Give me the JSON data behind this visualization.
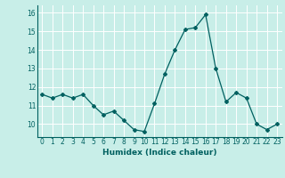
{
  "x": [
    0,
    1,
    2,
    3,
    4,
    5,
    6,
    7,
    8,
    9,
    10,
    11,
    12,
    13,
    14,
    15,
    16,
    17,
    18,
    19,
    20,
    21,
    22,
    23
  ],
  "y": [
    11.6,
    11.4,
    11.6,
    11.4,
    11.6,
    11.0,
    10.5,
    10.7,
    10.2,
    9.7,
    9.6,
    11.1,
    12.7,
    14.0,
    15.1,
    15.2,
    15.9,
    13.0,
    11.2,
    11.7,
    11.4,
    10.0,
    9.7,
    10.0
  ],
  "xlabel": "Humidex (Indice chaleur)",
  "xlim": [
    -0.5,
    23.5
  ],
  "ylim": [
    9.3,
    16.4
  ],
  "yticks": [
    10,
    11,
    12,
    13,
    14,
    15,
    16
  ],
  "xticks": [
    0,
    1,
    2,
    3,
    4,
    5,
    6,
    7,
    8,
    9,
    10,
    11,
    12,
    13,
    14,
    15,
    16,
    17,
    18,
    19,
    20,
    21,
    22,
    23
  ],
  "line_color": "#006060",
  "marker_color": "#006060",
  "bg_color": "#c8eee8",
  "grid_color": "#ffffff",
  "tick_color": "#006060",
  "label_color": "#006060"
}
